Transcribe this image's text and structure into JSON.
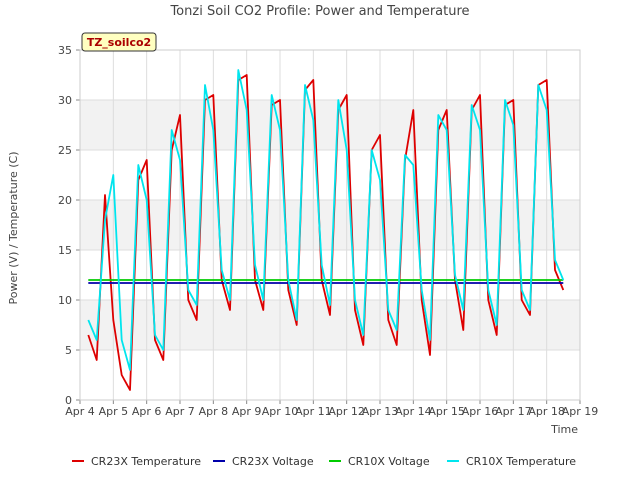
{
  "chart_data": {
    "type": "line",
    "title": "Tonzi Soil CO2 Profile: Power and Temperature",
    "xlabel": "Time",
    "ylabel": "Power (V) / Temperature (C)",
    "annotation": "TZ_soilco2",
    "xlim": [
      "2024-04-04",
      "2024-04-19"
    ],
    "ylim": [
      0,
      35
    ],
    "grid": true,
    "legend_position": "bottom",
    "x_ticks": [
      "Apr 4",
      "Apr 5",
      "Apr 6",
      "Apr 7",
      "Apr 8",
      "Apr 9",
      "Apr 10",
      "Apr 11",
      "Apr 12",
      "Apr 13",
      "Apr 14",
      "Apr 15",
      "Apr 16",
      "Apr 17",
      "Apr 18",
      "Apr 19"
    ],
    "y_ticks": [
      0,
      5,
      10,
      15,
      20,
      25,
      30,
      35
    ],
    "series": [
      {
        "name": "CR23X Temperature",
        "color": "#dd0000",
        "x": [
          "2024-04-04 06:00",
          "2024-04-04 12:00",
          "2024-04-04 18:00",
          "2024-04-05 00:00",
          "2024-04-05 06:00",
          "2024-04-05 12:00",
          "2024-04-05 18:00",
          "2024-04-06 00:00",
          "2024-04-06 06:00",
          "2024-04-06 12:00",
          "2024-04-06 18:00",
          "2024-04-07 00:00",
          "2024-04-07 06:00",
          "2024-04-07 12:00",
          "2024-04-07 18:00",
          "2024-04-08 00:00",
          "2024-04-08 06:00",
          "2024-04-08 12:00",
          "2024-04-08 18:00",
          "2024-04-09 00:00",
          "2024-04-09 06:00",
          "2024-04-09 12:00",
          "2024-04-09 18:00",
          "2024-04-10 00:00",
          "2024-04-10 06:00",
          "2024-04-10 12:00",
          "2024-04-10 18:00",
          "2024-04-11 00:00",
          "2024-04-11 06:00",
          "2024-04-11 12:00",
          "2024-04-11 18:00",
          "2024-04-12 00:00",
          "2024-04-12 06:00",
          "2024-04-12 12:00",
          "2024-04-12 18:00",
          "2024-04-13 00:00",
          "2024-04-13 06:00",
          "2024-04-13 12:00",
          "2024-04-13 18:00",
          "2024-04-14 00:00",
          "2024-04-14 06:00",
          "2024-04-14 12:00",
          "2024-04-14 18:00",
          "2024-04-15 00:00",
          "2024-04-15 06:00",
          "2024-04-15 12:00",
          "2024-04-15 18:00",
          "2024-04-16 00:00",
          "2024-04-16 06:00",
          "2024-04-16 12:00",
          "2024-04-16 18:00",
          "2024-04-17 00:00",
          "2024-04-17 06:00",
          "2024-04-17 12:00",
          "2024-04-17 18:00",
          "2024-04-18 00:00",
          "2024-04-18 06:00",
          "2024-04-18 12:00"
        ],
        "y": [
          6.5,
          4.0,
          20.5,
          8.0,
          2.5,
          1.0,
          22.0,
          24.0,
          6.0,
          4.0,
          25.0,
          28.5,
          10.0,
          8.0,
          30.0,
          30.5,
          12.0,
          9.0,
          32.0,
          32.5,
          12.0,
          9.0,
          29.5,
          30.0,
          11.0,
          7.5,
          31.0,
          32.0,
          12.0,
          8.5,
          29.0,
          30.5,
          9.0,
          5.5,
          25.0,
          26.5,
          8.0,
          5.5,
          24.0,
          29.0,
          10.0,
          4.5,
          27.0,
          29.0,
          12.0,
          7.0,
          29.0,
          30.5,
          10.0,
          6.5,
          29.5,
          30.0,
          10.0,
          8.5,
          31.5,
          32.0,
          13.0,
          11.0
        ]
      },
      {
        "name": "CR23X Voltage",
        "color": "#0000aa",
        "x": [
          "2024-04-04 06:00",
          "2024-04-18 12:00"
        ],
        "y": [
          11.7,
          11.7
        ]
      },
      {
        "name": "CR10X Voltage",
        "color": "#00cc00",
        "x": [
          "2024-04-04 06:00",
          "2024-04-18 12:00"
        ],
        "y": [
          12.0,
          12.0
        ]
      },
      {
        "name": "CR10X Temperature",
        "color": "#00e5ee",
        "x": [
          "2024-04-04 06:00",
          "2024-04-04 12:00",
          "2024-04-04 18:00",
          "2024-04-05 00:00",
          "2024-04-05 06:00",
          "2024-04-05 12:00",
          "2024-04-05 18:00",
          "2024-04-06 00:00",
          "2024-04-06 06:00",
          "2024-04-06 12:00",
          "2024-04-06 18:00",
          "2024-04-07 00:00",
          "2024-04-07 06:00",
          "2024-04-07 12:00",
          "2024-04-07 18:00",
          "2024-04-08 00:00",
          "2024-04-08 06:00",
          "2024-04-08 12:00",
          "2024-04-08 18:00",
          "2024-04-09 00:00",
          "2024-04-09 06:00",
          "2024-04-09 12:00",
          "2024-04-09 18:00",
          "2024-04-10 00:00",
          "2024-04-10 06:00",
          "2024-04-10 12:00",
          "2024-04-10 18:00",
          "2024-04-11 00:00",
          "2024-04-11 06:00",
          "2024-04-11 12:00",
          "2024-04-11 18:00",
          "2024-04-12 00:00",
          "2024-04-12 06:00",
          "2024-04-12 12:00",
          "2024-04-12 18:00",
          "2024-04-13 00:00",
          "2024-04-13 06:00",
          "2024-04-13 12:00",
          "2024-04-13 18:00",
          "2024-04-14 00:00",
          "2024-04-14 06:00",
          "2024-04-14 12:00",
          "2024-04-14 18:00",
          "2024-04-15 00:00",
          "2024-04-15 06:00",
          "2024-04-15 12:00",
          "2024-04-15 18:00",
          "2024-04-16 00:00",
          "2024-04-16 06:00",
          "2024-04-16 12:00",
          "2024-04-16 18:00",
          "2024-04-17 00:00",
          "2024-04-17 06:00",
          "2024-04-17 12:00",
          "2024-04-17 18:00",
          "2024-04-18 00:00",
          "2024-04-18 06:00",
          "2024-04-18 12:00"
        ],
        "y": [
          8.0,
          6.0,
          18.0,
          22.5,
          6.0,
          3.0,
          23.5,
          20.0,
          6.5,
          5.0,
          27.0,
          24.0,
          11.0,
          9.5,
          31.5,
          27.0,
          13.0,
          10.0,
          33.0,
          29.0,
          13.5,
          10.0,
          30.5,
          27.0,
          12.0,
          8.0,
          31.5,
          28.0,
          13.5,
          9.5,
          30.0,
          25.0,
          10.0,
          6.5,
          25.0,
          22.0,
          9.0,
          7.0,
          24.5,
          23.5,
          11.0,
          6.0,
          28.5,
          27.0,
          12.5,
          9.0,
          29.5,
          27.0,
          11.0,
          7.5,
          30.0,
          27.5,
          11.0,
          9.0,
          31.5,
          29.0,
          14.0,
          12.0
        ]
      }
    ]
  }
}
